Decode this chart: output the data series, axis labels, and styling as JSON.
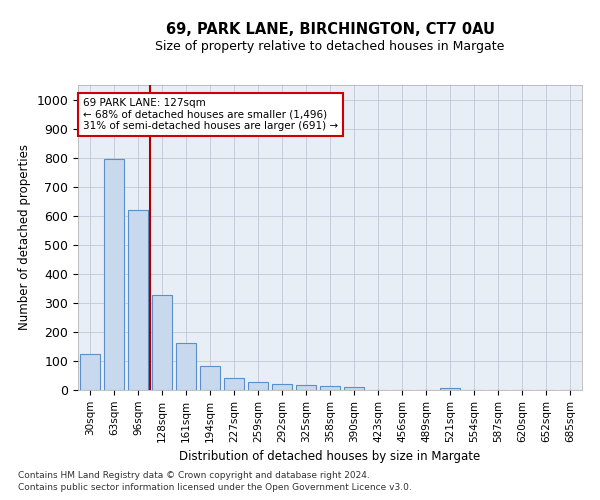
{
  "title1": "69, PARK LANE, BIRCHINGTON, CT7 0AU",
  "title2": "Size of property relative to detached houses in Margate",
  "xlabel": "Distribution of detached houses by size in Margate",
  "ylabel": "Number of detached properties",
  "categories": [
    "30sqm",
    "63sqm",
    "96sqm",
    "128sqm",
    "161sqm",
    "194sqm",
    "227sqm",
    "259sqm",
    "292sqm",
    "325sqm",
    "358sqm",
    "390sqm",
    "423sqm",
    "456sqm",
    "489sqm",
    "521sqm",
    "554sqm",
    "587sqm",
    "620sqm",
    "652sqm",
    "685sqm"
  ],
  "values": [
    125,
    795,
    618,
    328,
    162,
    82,
    40,
    27,
    22,
    16,
    15,
    10,
    0,
    0,
    0,
    8,
    0,
    0,
    0,
    0,
    0
  ],
  "bar_color": "#c8d9ee",
  "bar_edge_color": "#5b8fc9",
  "vline_color": "#aa0000",
  "annotation_line1": "69 PARK LANE: 127sqm",
  "annotation_line2": "← 68% of detached houses are smaller (1,496)",
  "annotation_line3": "31% of semi-detached houses are larger (691) →",
  "annotation_box_color": "#ffffff",
  "annotation_box_edge": "#cc0000",
  "footer1": "Contains HM Land Registry data © Crown copyright and database right 2024.",
  "footer2": "Contains public sector information licensed under the Open Government Licence v3.0.",
  "ylim": [
    0,
    1050
  ],
  "yticks": [
    0,
    100,
    200,
    300,
    400,
    500,
    600,
    700,
    800,
    900,
    1000
  ],
  "background_color": "#e8eef6",
  "plot_background": "#ffffff",
  "grid_color": "#c0c8d8"
}
